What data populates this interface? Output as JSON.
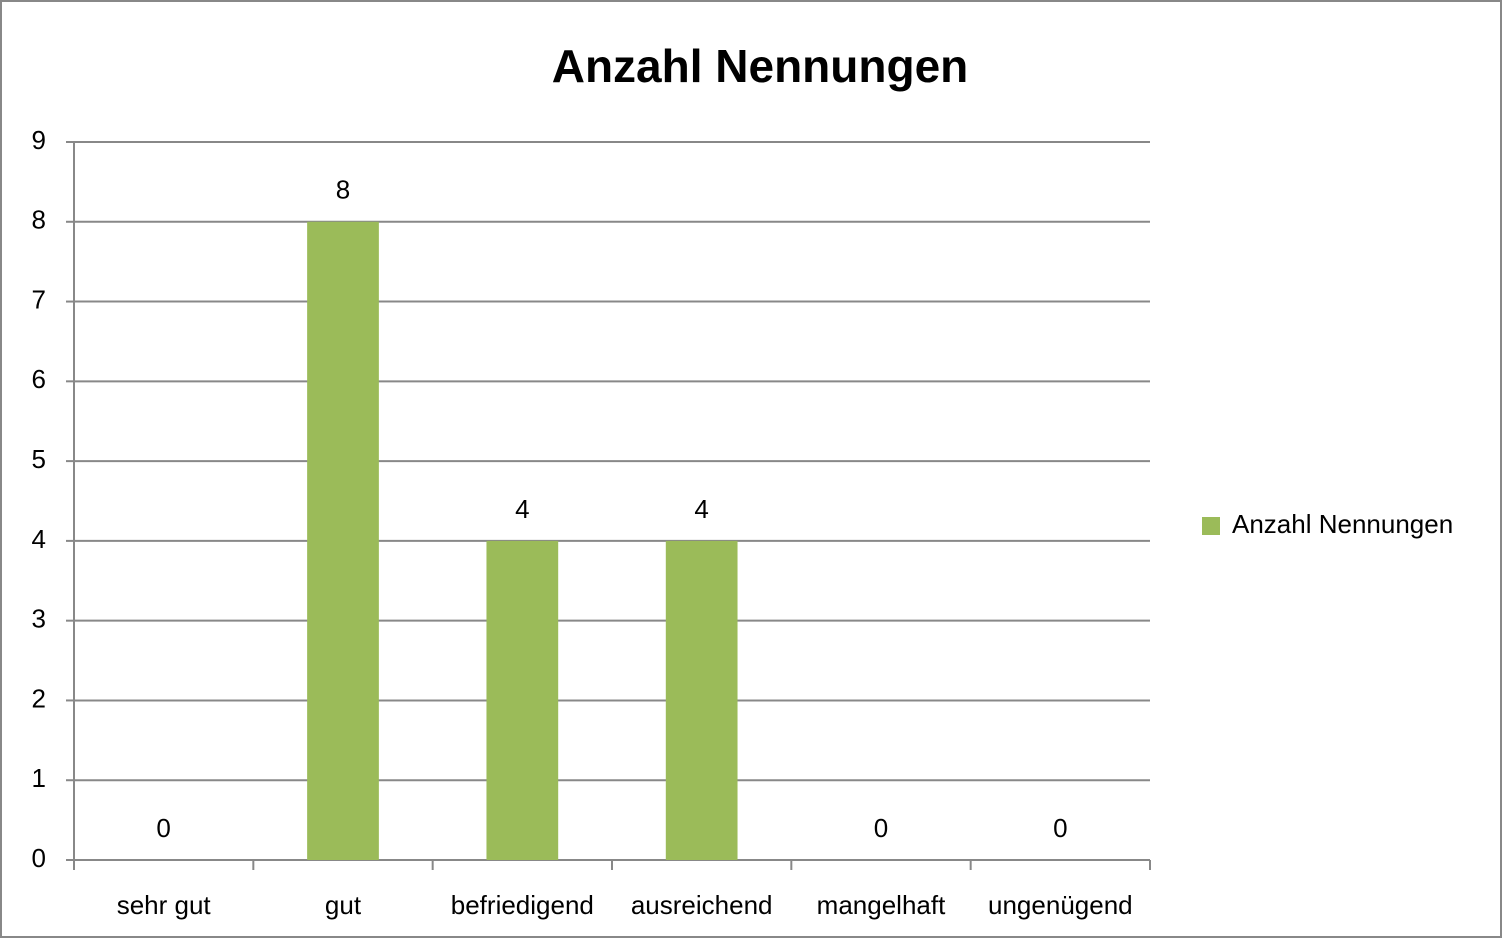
{
  "chart_data": {
    "type": "bar",
    "title": "Anzahl Nennungen",
    "categories": [
      "sehr gut",
      "gut",
      "befriedigend",
      "ausreichend",
      "mangelhaft",
      "ungenügend"
    ],
    "series": [
      {
        "name": "Anzahl Nennungen",
        "color": "#9bbb59",
        "values": [
          0,
          8,
          4,
          4,
          0,
          0
        ]
      }
    ],
    "ylim": [
      0,
      9
    ],
    "yticks": [
      0,
      1,
      2,
      3,
      4,
      5,
      6,
      7,
      8,
      9
    ],
    "grid": true,
    "legend": "right"
  }
}
